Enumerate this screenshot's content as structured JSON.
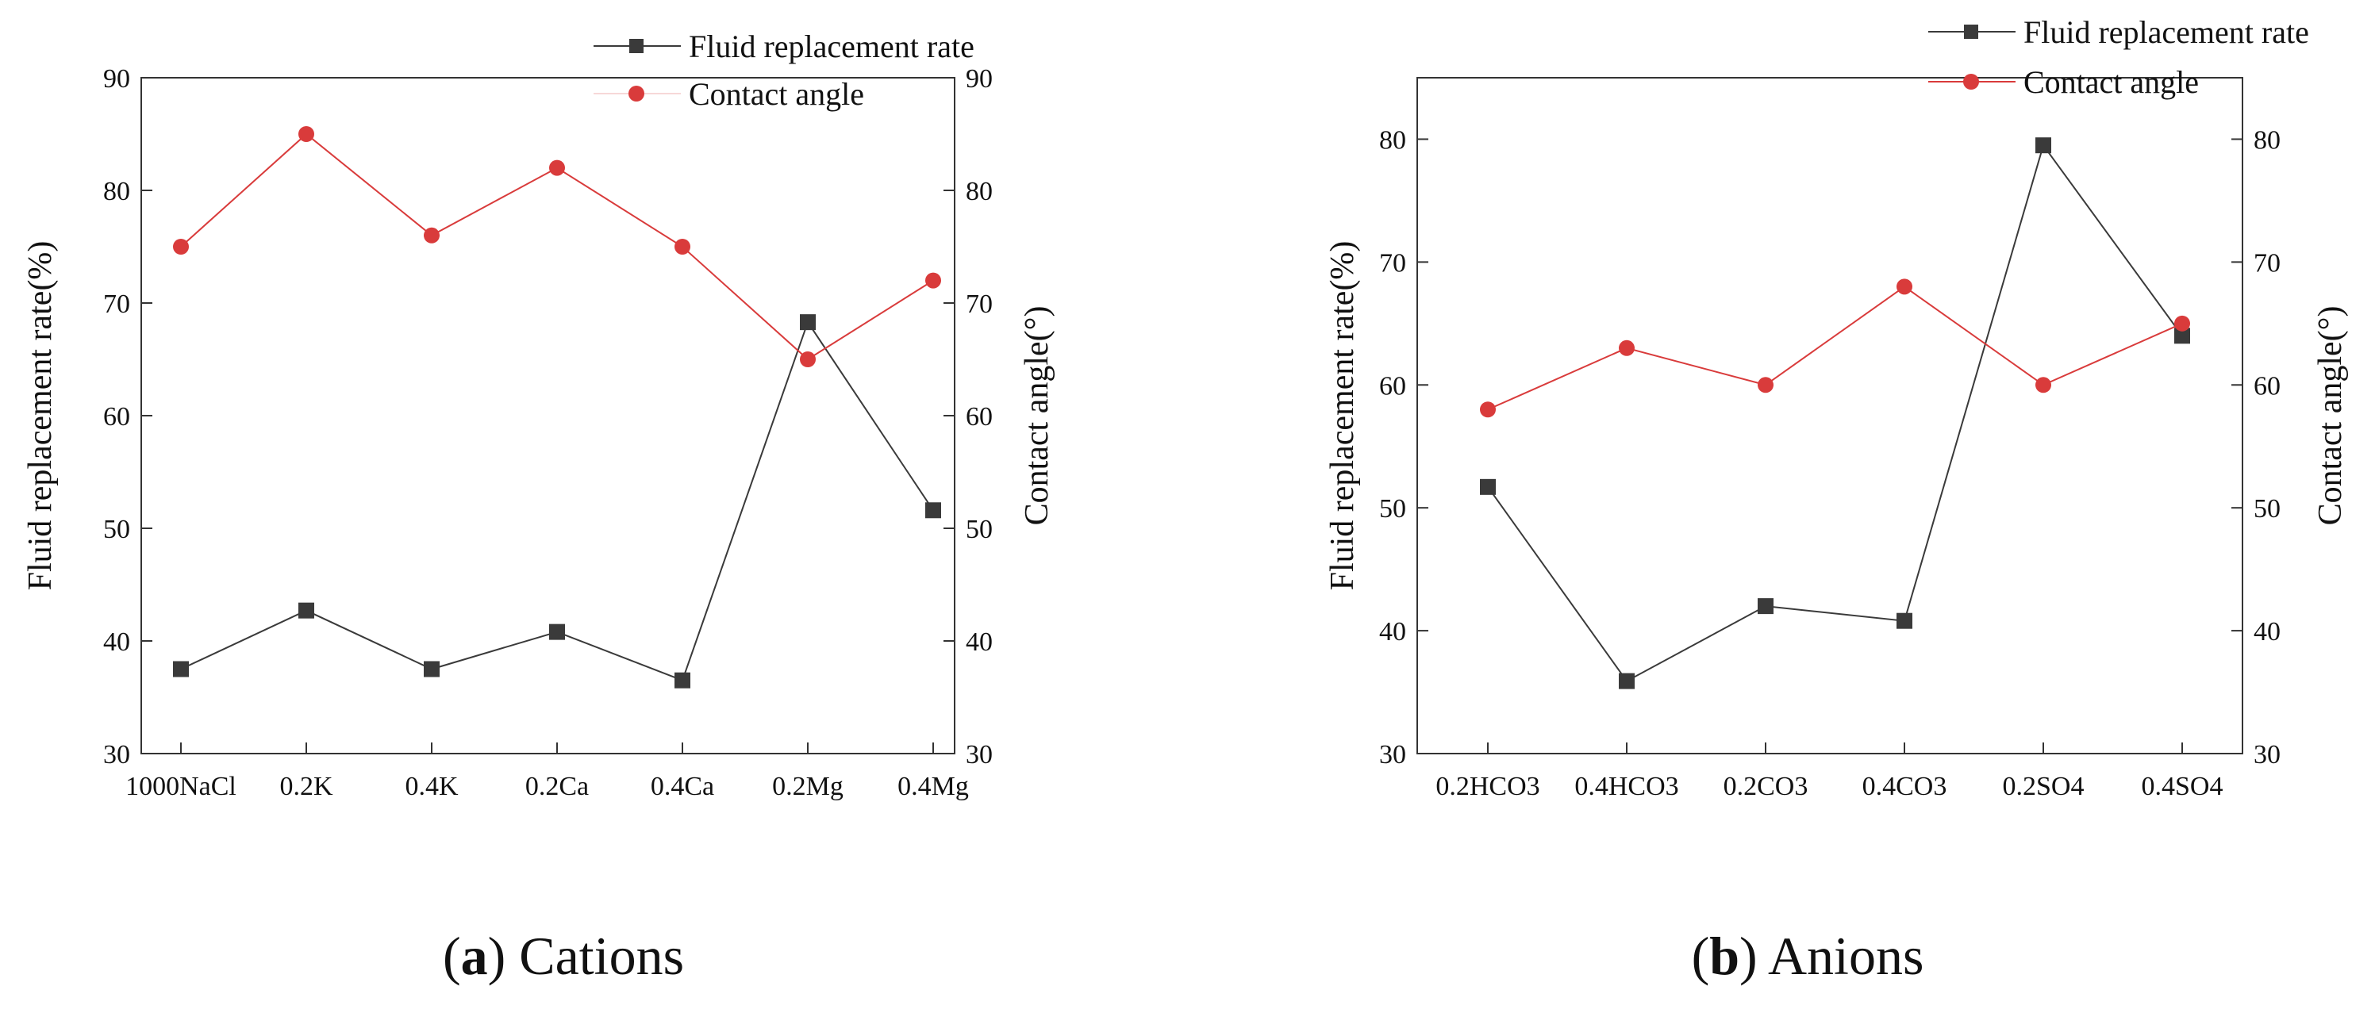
{
  "colors": {
    "replacement": "#3a3a3a",
    "contact": "#d93b3b",
    "axis": "#333333"
  },
  "chart_data": [
    {
      "type": "line",
      "caption_letter": "a",
      "caption_text": "Cations",
      "categories": [
        "1000NaCl",
        "0.2K",
        "0.4K",
        "0.2Ca",
        "0.4Ca",
        "0.2Mg",
        "0.4Mg"
      ],
      "ylabel_left": "Fluid replacement rate(%)",
      "ylabel_right": "Contact angle(°)",
      "ylim_left": [
        30,
        90
      ],
      "ylim_right": [
        30,
        90
      ],
      "yticks_left": [
        "30",
        "40",
        "50",
        "60",
        "70",
        "80",
        "90"
      ],
      "yticks_right": [
        "30",
        "40",
        "50",
        "60",
        "70",
        "80",
        "90"
      ],
      "legend": [
        "Fluid replacement rate",
        "Contact angle"
      ],
      "series": [
        {
          "name": "Fluid replacement rate",
          "axis": "left",
          "marker": "square",
          "values": [
            37.5,
            42.7,
            37.5,
            40.8,
            36.5,
            68.3,
            51.6
          ]
        },
        {
          "name": "Contact angle",
          "axis": "right",
          "marker": "circle",
          "values": [
            75,
            85,
            76,
            82,
            75,
            65,
            72
          ]
        }
      ]
    },
    {
      "type": "line",
      "caption_letter": "b",
      "caption_text": "Anions",
      "categories": [
        "0.2HCO3",
        "0.4HCO3",
        "0.2CO3",
        "0.4CO3",
        "0.2SO4",
        "0.4SO4"
      ],
      "ylabel_left": "Fluid replacement rate(%)",
      "ylabel_right": "Contact angle(°)",
      "ylim_left": [
        30,
        85
      ],
      "ylim_right": [
        30,
        85
      ],
      "yticks_left": [
        "30",
        "40",
        "50",
        "60",
        "70",
        "80"
      ],
      "yticks_right": [
        "30",
        "40",
        "50",
        "60",
        "70",
        "80"
      ],
      "legend": [
        "Fluid replacement rate",
        "Contact angle"
      ],
      "series": [
        {
          "name": "Fluid replacement rate",
          "axis": "left",
          "marker": "square",
          "values": [
            51.7,
            35.9,
            42.0,
            40.8,
            79.5,
            64.0
          ]
        },
        {
          "name": "Contact angle",
          "axis": "right",
          "marker": "circle",
          "values": [
            58,
            63,
            60,
            68,
            60,
            65
          ]
        }
      ]
    }
  ]
}
